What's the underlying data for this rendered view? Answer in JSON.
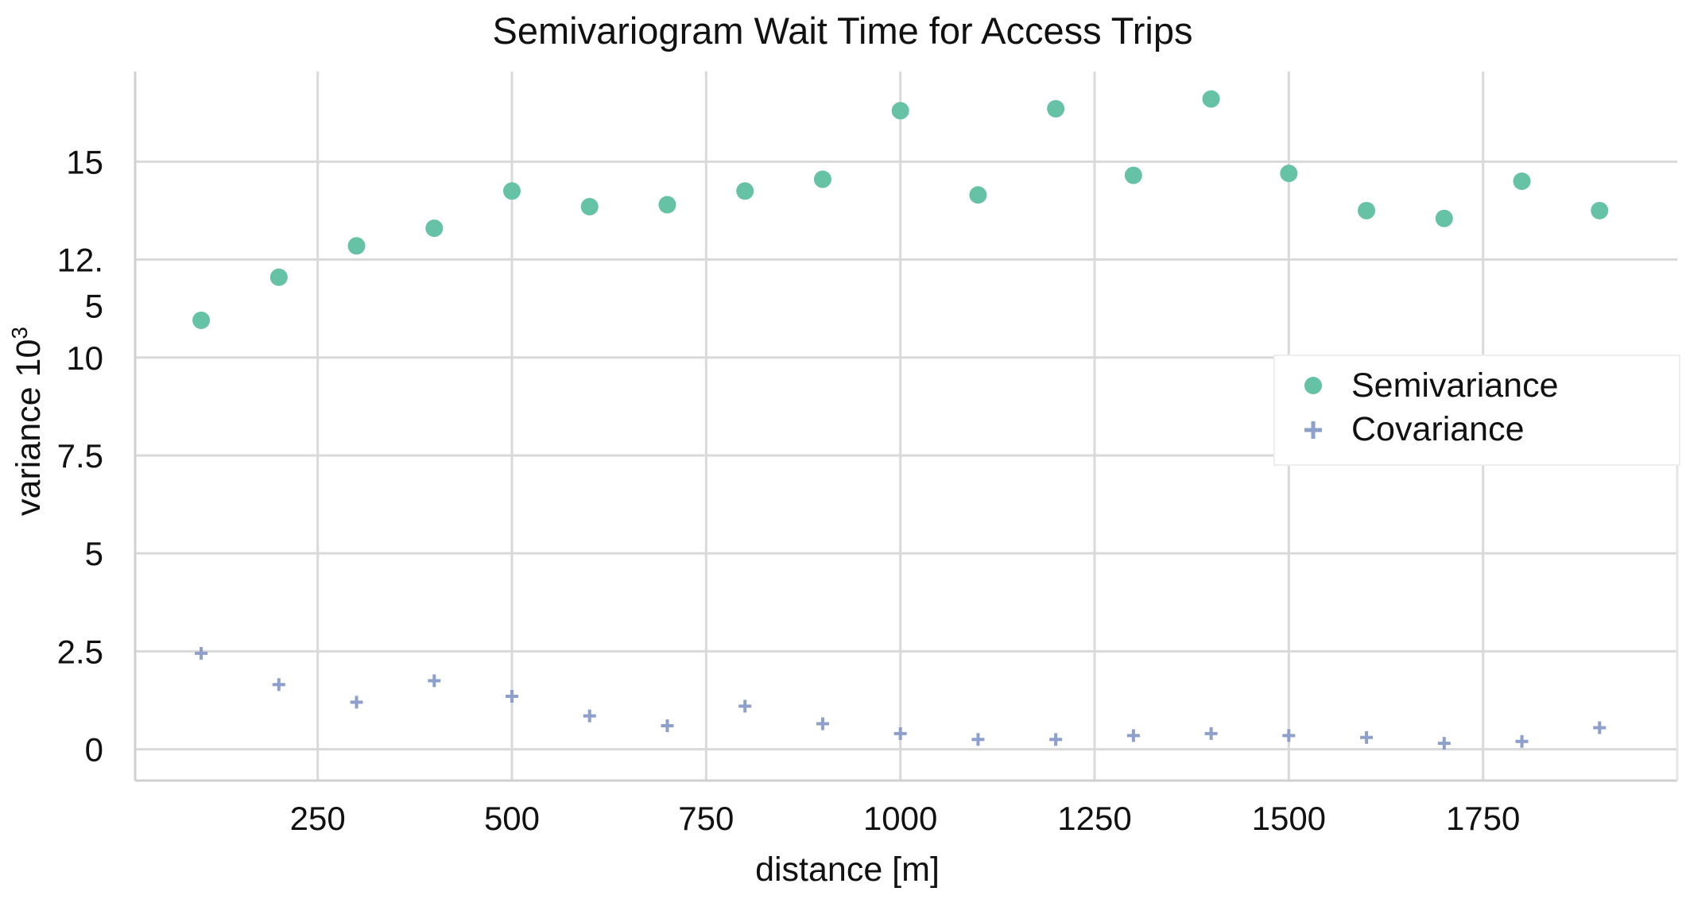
{
  "chart_data": {
    "type": "scatter",
    "title": "Semivariogram Wait Time for Access Trips",
    "xlabel": "distance [m]",
    "ylabel": "variance 10",
    "ylabel_superscript": "3",
    "xlim": [
      15,
      2000
    ],
    "ylim": [
      -0.8,
      17.3
    ],
    "grid": true,
    "x_ticks": [
      250,
      500,
      750,
      1000,
      1250,
      1500,
      1750
    ],
    "x_tick_labels": [
      "250",
      "500",
      "750",
      "1000",
      "1250",
      "1500",
      "1750"
    ],
    "y_ticks": [
      0,
      2.5,
      5,
      7.5,
      10,
      12.5,
      15
    ],
    "y_tick_labels": [
      "0",
      "2.5",
      "5",
      "7.5",
      "10",
      "12.5",
      "15"
    ],
    "y_tick_label_wraps": {
      "12.5": [
        "12.",
        "5"
      ]
    },
    "legend_position": "right",
    "series": [
      {
        "name": "Semivariance",
        "marker": "circle",
        "color": "#66c2a5",
        "x": [
          100,
          200,
          300,
          400,
          500,
          600,
          700,
          800,
          900,
          1000,
          1100,
          1200,
          1300,
          1400,
          1500,
          1600,
          1700,
          1800,
          1900
        ],
        "y": [
          10.95,
          12.05,
          12.85,
          13.3,
          14.25,
          13.85,
          13.9,
          14.25,
          14.55,
          16.3,
          14.15,
          16.35,
          14.65,
          16.6,
          14.7,
          13.75,
          13.55,
          14.5,
          13.75
        ]
      },
      {
        "name": "Covariance",
        "marker": "plus",
        "color": "#8da0cb",
        "x": [
          100,
          200,
          300,
          400,
          500,
          600,
          700,
          800,
          900,
          1000,
          1100,
          1200,
          1300,
          1400,
          1500,
          1600,
          1700,
          1800,
          1900
        ],
        "y": [
          2.45,
          1.65,
          1.2,
          1.75,
          1.35,
          0.85,
          0.6,
          1.1,
          0.65,
          0.4,
          0.25,
          0.25,
          0.35,
          0.4,
          0.35,
          0.3,
          0.15,
          0.2,
          0.55
        ]
      }
    ]
  }
}
